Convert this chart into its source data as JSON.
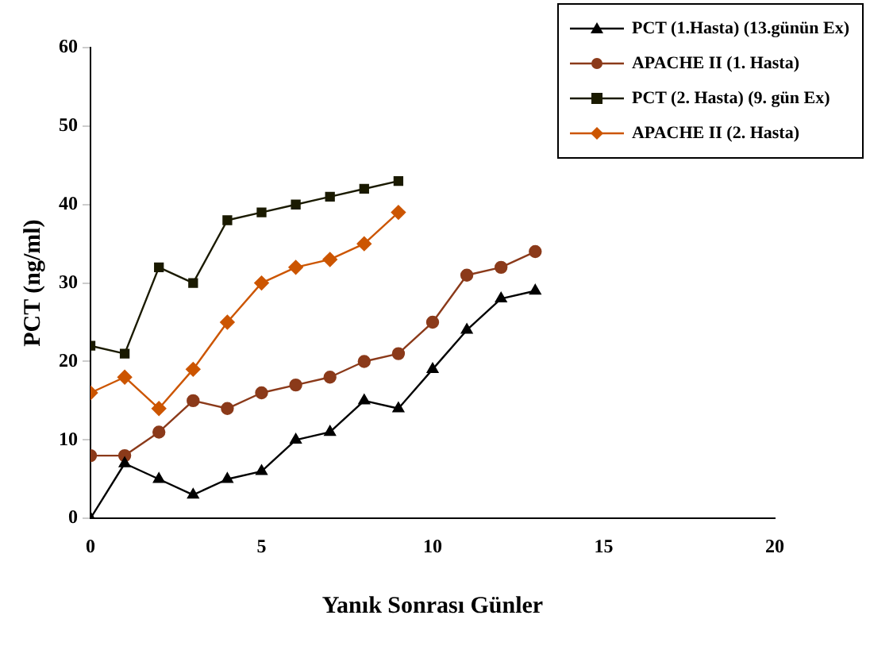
{
  "chart_data": {
    "type": "line",
    "xlabel": "Yanık Sonrası Günler",
    "ylabel": "PCT (ng/ml)",
    "xlim": [
      0,
      20
    ],
    "xticks": [
      0,
      5,
      10,
      15,
      20
    ],
    "ylim": [
      0,
      60
    ],
    "yticks": [
      0,
      10,
      20,
      30,
      40,
      50,
      60
    ],
    "grid": false,
    "legend": "top right",
    "series": [
      {
        "name": "PCT (1.Hasta) (13.günün Ex)",
        "color": "#000000",
        "marker": "triangle",
        "x": [
          0,
          1,
          2,
          3,
          4,
          5,
          6,
          7,
          8,
          9,
          10,
          11,
          12,
          13
        ],
        "values": [
          0,
          7,
          5,
          3,
          5,
          6,
          10,
          11,
          15,
          14,
          19,
          24,
          28,
          29
        ]
      },
      {
        "name": "APACHE II (1. Hasta)",
        "color": "#8b3a1a",
        "marker": "circle",
        "x": [
          0,
          1,
          2,
          3,
          4,
          5,
          6,
          7,
          8,
          9,
          10,
          11,
          12,
          13
        ],
        "values": [
          8,
          8,
          11,
          15,
          14,
          16,
          17,
          18,
          20,
          21,
          25,
          31,
          32,
          34
        ]
      },
      {
        "name": "PCT (2. Hasta) (9. gün Ex)",
        "color": "#1a1a00",
        "marker": "square",
        "x": [
          0,
          1,
          2,
          3,
          4,
          5,
          6,
          7,
          8,
          9
        ],
        "values": [
          22,
          21,
          32,
          30,
          38,
          39,
          40,
          41,
          42,
          43
        ]
      },
      {
        "name": "APACHE II (2. Hasta)",
        "color": "#cc5500",
        "marker": "diamond",
        "x": [
          0,
          1,
          2,
          3,
          4,
          5,
          6,
          7,
          8,
          9
        ],
        "values": [
          16,
          18,
          14,
          19,
          25,
          30,
          32,
          33,
          35,
          39
        ]
      }
    ]
  }
}
